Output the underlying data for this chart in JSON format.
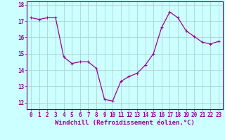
{
  "x": [
    0,
    1,
    2,
    3,
    4,
    5,
    6,
    7,
    8,
    9,
    10,
    11,
    12,
    13,
    14,
    15,
    16,
    17,
    18,
    19,
    20,
    21,
    22,
    23
  ],
  "y": [
    17.2,
    17.1,
    17.2,
    17.2,
    14.8,
    14.4,
    14.5,
    14.5,
    14.1,
    12.2,
    12.1,
    13.3,
    13.6,
    13.8,
    14.3,
    15.0,
    16.6,
    17.55,
    17.2,
    16.4,
    16.05,
    15.7,
    15.6,
    15.75
  ],
  "line_color": "#990099",
  "marker": "+",
  "markersize": 3,
  "linewidth": 0.9,
  "background_color": "#ccffff",
  "grid_color": "#aacccc",
  "xlabel": "Windchill (Refroidissement éolien,°C)",
  "xlabel_fontsize": 6.5,
  "ylabel_ticks": [
    12,
    13,
    14,
    15,
    16,
    17
  ],
  "ylim": [
    11.6,
    18.2
  ],
  "xlim": [
    -0.5,
    23.5
  ],
  "tick_fontsize": 5.5,
  "label_color": "#990099",
  "axes_color": "#660066",
  "top_ytick": 18
}
